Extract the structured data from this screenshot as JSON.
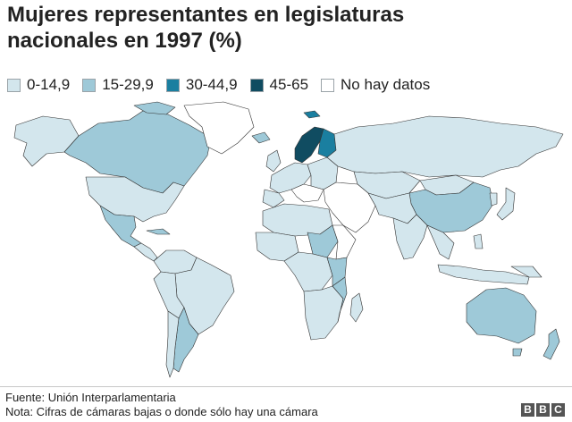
{
  "title": "Mujeres representantes en legislaturas nacionales en 1997 (%)",
  "legend": [
    {
      "label": "0-14,9",
      "color": "#d3e6ed"
    },
    {
      "label": "15-29,9",
      "color": "#9ec9d8"
    },
    {
      "label": "30-44,9",
      "color": "#1a7fa0"
    },
    {
      "label": "45-65",
      "color": "#104c61"
    },
    {
      "label": "No hay datos",
      "color": "#ffffff"
    }
  ],
  "source": "Fuente: Unión Interparlamentaria",
  "note": "Nota: Cifras de cámaras bajas o donde sólo hay una cámara",
  "logo": [
    "B",
    "B",
    "C"
  ]
}
